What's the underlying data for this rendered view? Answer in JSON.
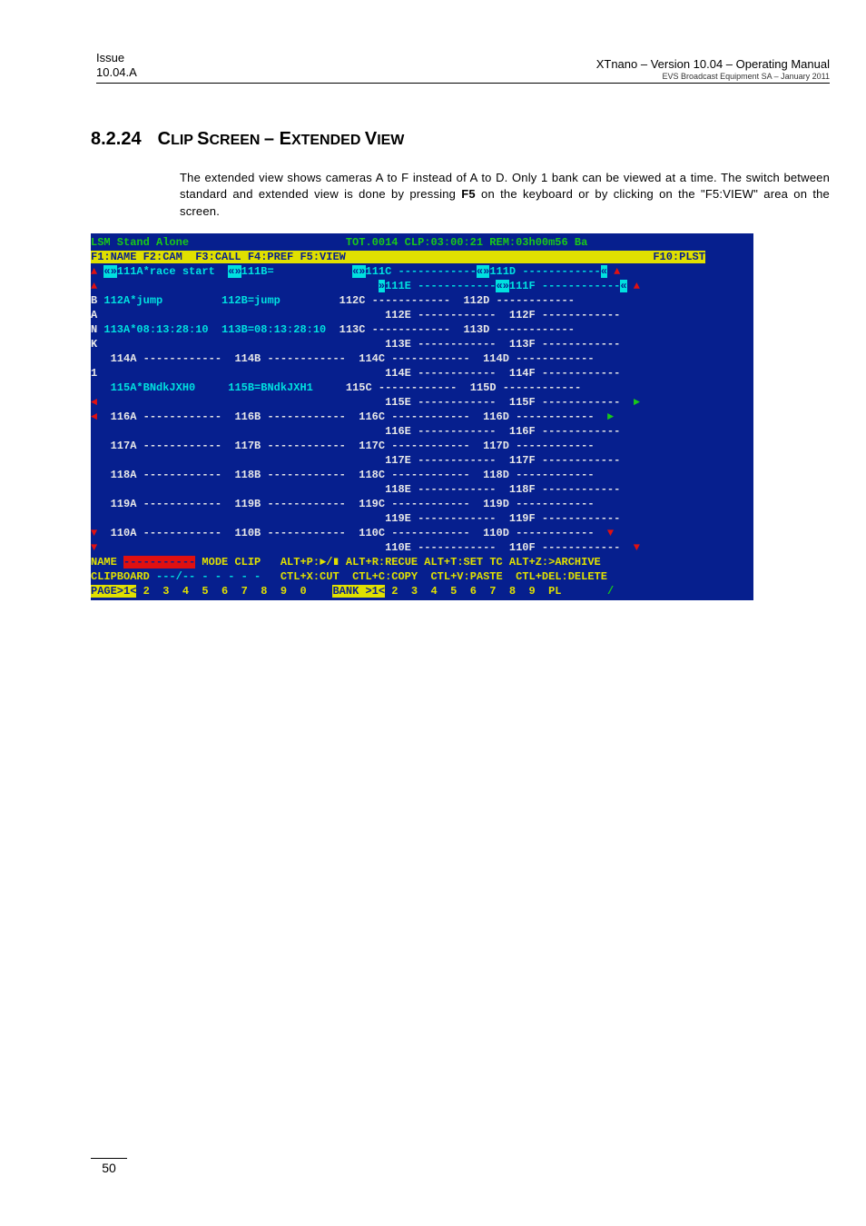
{
  "header": {
    "issue_line1": "Issue",
    "issue_line2": "10.04.A",
    "title_right": "XTnano – Version 10.04 – Operating Manual",
    "subtitle_right": "EVS Broadcast Equipment SA – January 2011"
  },
  "section": {
    "number": "8.2.24",
    "title_parts": [
      "C",
      "LIP ",
      "S",
      "CREEN ",
      "– E",
      "XTENDED ",
      "V",
      "IEW"
    ]
  },
  "paragraph": {
    "pre": "The extended view shows cameras A to F instead of A to D. Only 1 bank can be viewed at a time. The switch between standard and extended view is done by pressing ",
    "bold": "F5",
    "post": " on the keyboard or by clicking on the \"F5:VIEW\" area on the screen."
  },
  "terminal": {
    "r00": {
      "a": "LSM Stand Alone",
      "b": "TOT.0014 CLP:03:00:21 REM:03h00m56 Ba"
    },
    "r01": {
      "a": "F1:NAME F2:CAM  F3:CALL F4:PREF F5:VIEW",
      "b": "F10:PLST"
    },
    "r02": {
      "pre": "",
      "a": "«»",
      "b": "111A*race start",
      "c": "«»",
      "d": "111B=",
      "e": "«»",
      "f": "111C ------------",
      "g": "«»",
      "h": "111D ------------",
      "i": "«"
    },
    "r03": {
      "a": "",
      "b": "»",
      "c": "111E ------------",
      "d": "«»",
      "e": "111F ------------",
      "f": "«"
    },
    "sidebar": "BANK 1",
    "rows": [
      {
        "s": "B",
        "a": "112A*jump",
        "b": "112B=jump",
        "c": "112C ------------",
        "d": "112D ------------"
      },
      {
        "s": "A",
        "a": "",
        "b": "",
        "c": "112E ------------",
        "d": "112F ------------"
      },
      {
        "s": "N",
        "a": "113A*08:13:28:10",
        "b": "113B=08:13:28:10",
        "c": "113C ------------",
        "d": "113D ------------"
      },
      {
        "s": "K",
        "a": "",
        "b": "",
        "c": "113E ------------",
        "d": "113F ------------"
      },
      {
        "s": " ",
        "a": "114A ------------",
        "b": "114B ------------",
        "c": "114C ------------",
        "d": "114D ------------"
      },
      {
        "s": "1",
        "a": "",
        "b": "",
        "c": "114E ------------",
        "d": "114F ------------"
      },
      {
        "s": " ",
        "a": "115A*BNdkJXH0",
        "b": "115B=BNdkJXH1",
        "c": "115C ------------",
        "d": "115D ------------"
      },
      {
        "s": " ",
        "a": "",
        "b": "",
        "c": "115E ------------",
        "d": "115F ------------",
        "rt": "►"
      },
      {
        "s": " ",
        "a": "116A ------------",
        "b": "116B ------------",
        "c": "116C ------------",
        "d": "116D ------------",
        "lt": "◄",
        "rt": "►"
      },
      {
        "s": " ",
        "a": "",
        "b": "",
        "c": "116E ------------",
        "d": "116F ------------"
      },
      {
        "s": " ",
        "a": "117A ------------",
        "b": "117B ------------",
        "c": "117C ------------",
        "d": "117D ------------"
      },
      {
        "s": " ",
        "a": "",
        "b": "",
        "c": "117E ------------",
        "d": "117F ------------"
      },
      {
        "s": " ",
        "a": "118A ------------",
        "b": "118B ------------",
        "c": "118C ------------",
        "d": "118D ------------"
      },
      {
        "s": " ",
        "a": "",
        "b": "",
        "c": "118E ------------",
        "d": "118F ------------"
      },
      {
        "s": " ",
        "a": "119A ------------",
        "b": "119B ------------",
        "c": "119C ------------",
        "d": "119D ------------"
      },
      {
        "s": " ",
        "a": "",
        "b": "",
        "c": "119E ------------",
        "d": "119F ------------"
      },
      {
        "s": " ",
        "a": "110A ------------",
        "b": "110B ------------",
        "c": "110C ------------",
        "d": "110D ------------",
        "lb": "▼",
        "rb": "▼"
      },
      {
        "s": " ",
        "a": "",
        "b": "",
        "c": "110E ------------",
        "d": "110F ------------",
        "lb": "▼",
        "rb": "▼"
      }
    ],
    "r_name": {
      "a": "NAME ",
      "b": "-----------",
      "c": " MODE CLIP",
      "d": "ALT+P:►/∎ ALT+R:RECUE ALT+T:SET TC ALT+Z:>ARCHIVE"
    },
    "r_clip": {
      "a": "CLIPBOARD ",
      "b": "---/-- - - - - -",
      "c": "CTL+X:CUT",
      "d": "CTL+C:COPY",
      "e": "CTL+V:PASTE",
      "f": "CTL+DEL:DELETE"
    },
    "r_page": {
      "a": "PAGE>1<",
      "b": " 2  3  4  5  6  7  8  9  0",
      "c": "BANK >1<",
      "d": " 2  3  4  5  6  7  8  9  PL",
      "e": "/"
    }
  },
  "page_number": "50",
  "colors": {
    "term_bg": "#061f8e",
    "term_green": "#19c919",
    "term_cyan": "#00e0e0",
    "term_yellow": "#e0e000",
    "term_red": "#e01010",
    "term_white": "#e8e8e8"
  }
}
